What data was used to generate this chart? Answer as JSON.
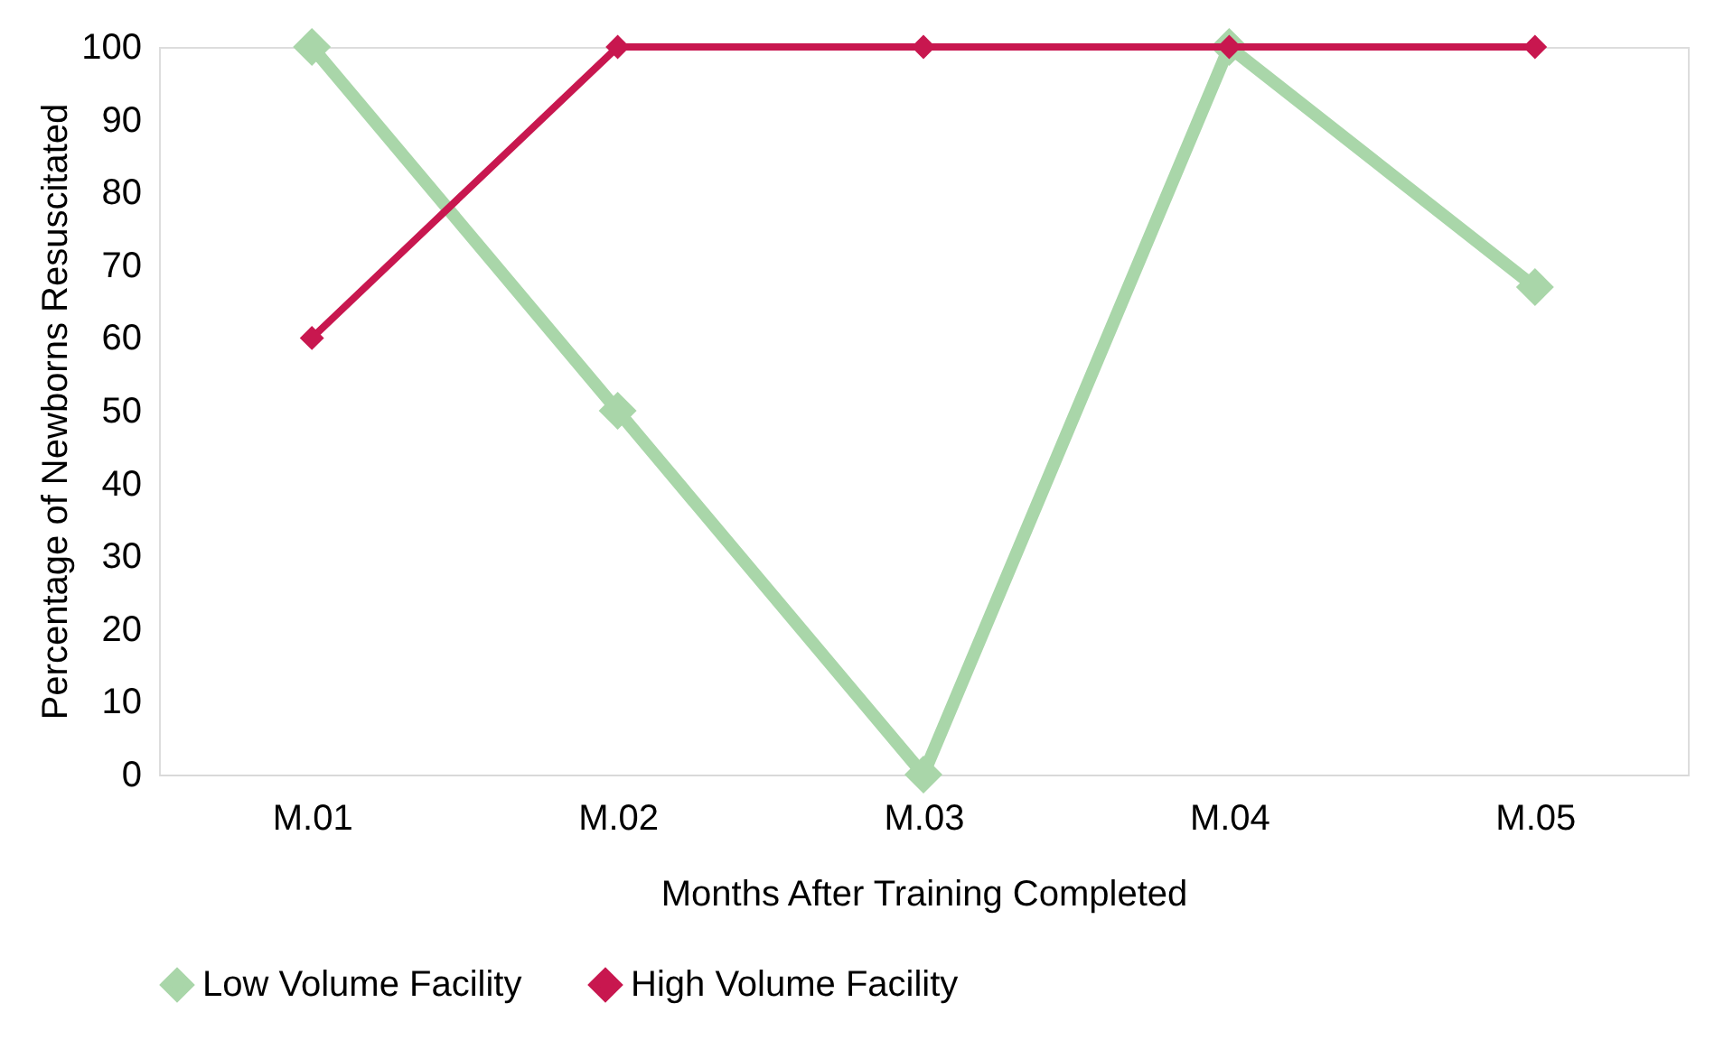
{
  "chart_data": {
    "type": "line",
    "xlabel": "Months After Training Completed",
    "ylabel": "Percentage of Newborns Resuscitated",
    "categories": [
      "M.01",
      "M.02",
      "M.03",
      "M.04",
      "M.05"
    ],
    "series": [
      {
        "name": "Low Volume Facility",
        "color": "#a9d6a9",
        "values": [
          100,
          50,
          0,
          100,
          67
        ]
      },
      {
        "name": "High Volume Facility",
        "color": "#c8174f",
        "values": [
          60,
          100,
          100,
          100,
          100
        ]
      }
    ],
    "ylim": [
      0,
      100
    ],
    "yticks": [
      0,
      10,
      20,
      30,
      40,
      50,
      60,
      70,
      80,
      90,
      100
    ],
    "grid": false,
    "legend": "bottom",
    "marker": "diamond",
    "line_style": "solid"
  }
}
